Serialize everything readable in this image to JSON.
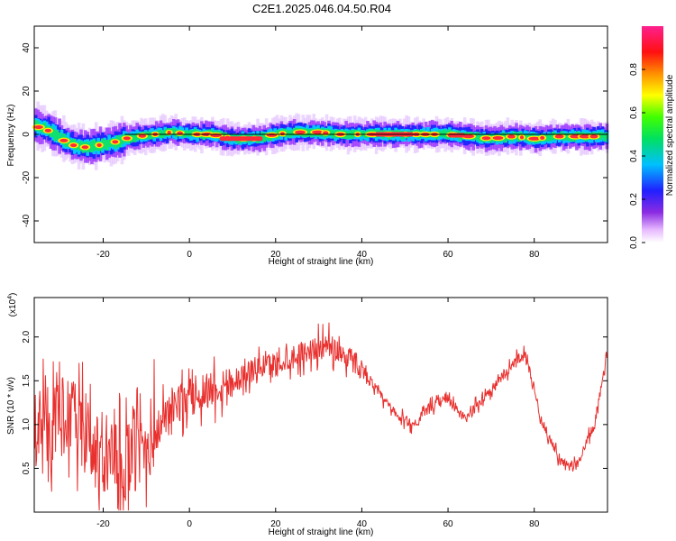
{
  "title": "C2E1.2025.046.04.50.R04",
  "chart_data": [
    {
      "type": "heatmap",
      "xlabel": "Height of straight line (km)",
      "ylabel": "Frequency (Hz)",
      "xlim": [
        -36,
        97
      ],
      "ylim": [
        -50,
        50
      ],
      "xticks": [
        -20,
        0,
        20,
        40,
        60,
        80
      ],
      "yticks": [
        -40,
        -20,
        0,
        20,
        40
      ],
      "colorbar": {
        "label": "Normalized spectral amplitude",
        "range": [
          0,
          1
        ],
        "ticks": [
          "0.0",
          "0.2",
          "0.4",
          "0.6",
          "0.8"
        ]
      },
      "ridge": {
        "x": [
          -36,
          -33,
          -30,
          -27,
          -24,
          -21,
          -18,
          -15,
          -12,
          -8,
          -4,
          0,
          5,
          10,
          15,
          20,
          25,
          30,
          35,
          40,
          45,
          50,
          55,
          60,
          65,
          70,
          75,
          80,
          85,
          90,
          97
        ],
        "y": [
          4,
          2,
          -2,
          -5,
          -6,
          -5,
          -4,
          -2,
          -1,
          0,
          1,
          0,
          0,
          -2,
          -2,
          0,
          1,
          1,
          0,
          0,
          0,
          0,
          0,
          0,
          -1,
          -2,
          -1,
          -2,
          -1,
          -1,
          -1
        ]
      }
    },
    {
      "type": "line",
      "xlabel": "Height of straight line (km)",
      "ylabel": "SNR (10 * v/v)",
      "multiplier": "(x10",
      "multiplier_exp": "4",
      "multiplier_close": ")",
      "xlim": [
        -36,
        97
      ],
      "ylim": [
        0,
        2.45
      ],
      "xticks": [
        -20,
        0,
        20,
        40,
        60,
        80
      ],
      "yticks": [
        "0.5",
        "1.0",
        "1.5",
        "2.0"
      ],
      "line_color": "#e8302e",
      "envelope": {
        "x": [
          -36,
          -32,
          -28,
          -24,
          -20,
          -16,
          -12,
          -8,
          -4,
          0,
          4,
          8,
          12,
          16,
          20,
          24,
          28,
          32,
          36,
          40,
          44,
          48,
          52,
          56,
          60,
          64,
          68,
          72,
          76,
          78,
          82,
          86,
          88,
          90,
          94,
          97
        ],
        "y": [
          1.0,
          1.0,
          1.15,
          0.8,
          0.6,
          0.55,
          0.65,
          0.9,
          1.2,
          1.3,
          1.4,
          1.45,
          1.55,
          1.65,
          1.7,
          1.78,
          1.85,
          1.9,
          1.8,
          1.65,
          1.35,
          1.1,
          1.0,
          1.2,
          1.3,
          1.05,
          1.3,
          1.5,
          1.75,
          1.8,
          1.0,
          0.6,
          0.5,
          0.55,
          1.0,
          1.8
        ]
      }
    }
  ]
}
